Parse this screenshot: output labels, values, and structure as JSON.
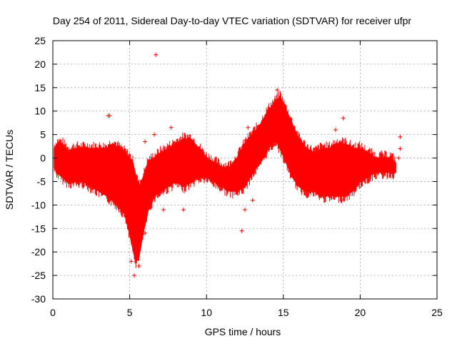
{
  "chart_data": {
    "type": "scatter",
    "title": "Day 254 of 2011, Sidereal Day-to-day VTEC variation (SDTVAR) for receiver ufpr",
    "xlabel": "GPS time / hours",
    "ylabel": "SDTVAR / TECUs",
    "xlim": [
      0,
      25
    ],
    "ylim": [
      -30,
      25
    ],
    "xticks": [
      0,
      5,
      10,
      15,
      20,
      25
    ],
    "yticks": [
      -30,
      -25,
      -20,
      -15,
      -10,
      -5,
      0,
      5,
      10,
      15,
      20,
      25
    ],
    "grid": true,
    "marker": "+",
    "series": [
      {
        "name": "SDTVAR",
        "color": "#ff0000",
        "envelope": {
          "x": [
            0.1,
            0.3,
            0.6,
            1.0,
            1.5,
            2.0,
            2.5,
            3.0,
            3.5,
            3.9,
            4.3,
            4.7,
            5.0,
            5.2,
            5.4,
            5.6,
            5.8,
            6.2,
            6.6,
            7.0,
            7.5,
            8.0,
            8.5,
            9.0,
            9.5,
            10.0,
            10.5,
            11.0,
            11.5,
            12.0,
            12.5,
            13.0,
            13.5,
            14.0,
            14.5,
            14.8,
            15.2,
            15.6,
            16.0,
            16.5,
            17.0,
            17.5,
            18.0,
            18.5,
            19.0,
            19.5,
            20.0,
            20.5,
            21.0,
            21.5,
            22.0,
            22.3
          ],
          "upper": [
            2,
            3,
            3,
            1.5,
            2,
            2,
            2,
            2,
            2,
            3,
            2,
            1,
            0,
            -1,
            -4,
            -6,
            -5,
            -1,
            0,
            1,
            2,
            3,
            4,
            4,
            2,
            0,
            -1,
            -2,
            -2,
            0,
            3,
            5,
            7,
            10,
            12,
            13,
            10,
            7,
            4,
            2,
            1,
            2,
            2,
            3,
            3,
            2,
            2,
            1,
            0,
            0,
            0,
            -1
          ],
          "lower": [
            -2,
            -3,
            -4,
            -5,
            -5,
            -5,
            -6,
            -7,
            -8,
            -9,
            -10,
            -12,
            -16,
            -19,
            -22,
            -21,
            -17,
            -11,
            -8,
            -7,
            -6,
            -5,
            -6,
            -5,
            -4,
            -4,
            -5,
            -6,
            -7,
            -7,
            -6,
            -3,
            -1,
            2,
            4,
            2,
            -1,
            -4,
            -6,
            -7,
            -7,
            -8,
            -8,
            -8,
            -8,
            -7,
            -5,
            -4,
            -3,
            -3,
            -3,
            -3
          ]
        },
        "points": [
          {
            "x": 6.7,
            "y": 22
          },
          {
            "x": 3.6,
            "y": 9
          },
          {
            "x": 3.7,
            "y": 9
          },
          {
            "x": 7.7,
            "y": 6.5
          },
          {
            "x": 6.0,
            "y": 3.5
          },
          {
            "x": 6.6,
            "y": 5
          },
          {
            "x": 12.7,
            "y": 6.5
          },
          {
            "x": 14.6,
            "y": 14.5
          },
          {
            "x": 18.4,
            "y": 6
          },
          {
            "x": 18.9,
            "y": 8.5
          },
          {
            "x": 22.6,
            "y": 4.5
          },
          {
            "x": 22.6,
            "y": 2
          },
          {
            "x": 22.5,
            "y": 0
          },
          {
            "x": 5.3,
            "y": -25
          },
          {
            "x": 5.6,
            "y": -23
          },
          {
            "x": 5.1,
            "y": -22
          },
          {
            "x": 6.0,
            "y": -16
          },
          {
            "x": 7.2,
            "y": -11
          },
          {
            "x": 8.5,
            "y": -11
          },
          {
            "x": 12.3,
            "y": -15.5
          },
          {
            "x": 12.5,
            "y": -11
          },
          {
            "x": 13.0,
            "y": -9
          },
          {
            "x": 18.8,
            "y": -9
          }
        ]
      }
    ]
  }
}
